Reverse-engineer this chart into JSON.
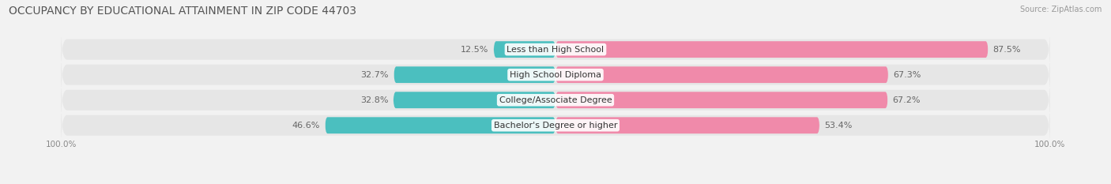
{
  "title": "OCCUPANCY BY EDUCATIONAL ATTAINMENT IN ZIP CODE 44703",
  "source": "Source: ZipAtlas.com",
  "categories": [
    "Less than High School",
    "High School Diploma",
    "College/Associate Degree",
    "Bachelor's Degree or higher"
  ],
  "owner_pct": [
    12.5,
    32.7,
    32.8,
    46.6
  ],
  "renter_pct": [
    87.5,
    67.3,
    67.2,
    53.4
  ],
  "owner_color": "#4bbfbf",
  "renter_color": "#f08aaa",
  "bg_color": "#f2f2f2",
  "bar_bg_color": "#e6e6e6",
  "title_fontsize": 10,
  "label_fontsize": 8,
  "axis_label_fontsize": 7.5,
  "legend_fontsize": 8,
  "bar_height": 0.65,
  "figsize": [
    14.06,
    2.33
  ],
  "dpi": 100
}
